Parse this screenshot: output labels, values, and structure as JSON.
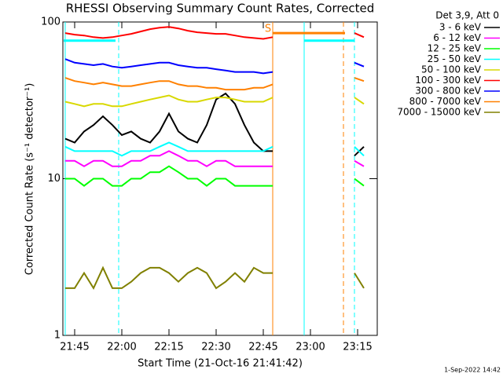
{
  "chart_data": {
    "type": "line",
    "title": "RHESSI Observing Summary Count Rates, Corrected",
    "x_label": "Start Time (21-Oct-16 21:41:42)",
    "y_label": "Corrected Count Rate (s⁻¹ detector⁻¹)",
    "legend_title": "Det 3,9, Att 0",
    "footnote": "1-Sep-2022 14:42",
    "log_y": true,
    "xlim": [
      1301.25,
      1401.25
    ],
    "xticks": [
      {
        "value": 1305,
        "label": "21:45"
      },
      {
        "value": 1320,
        "label": "22:00"
      },
      {
        "value": 1335,
        "label": "22:15"
      },
      {
        "value": 1350,
        "label": "22:30"
      },
      {
        "value": 1365,
        "label": "22:45"
      },
      {
        "value": 1380,
        "label": "23:00"
      },
      {
        "value": 1395,
        "label": "23:15"
      }
    ],
    "ylim": [
      1,
      100
    ],
    "yticks": [
      1,
      10,
      100
    ],
    "x": [
      1302,
      1305,
      1308,
      1311,
      1314,
      1317,
      1320,
      1323,
      1326,
      1329,
      1332,
      1335,
      1338,
      1341,
      1344,
      1347,
      1350,
      1353,
      1356,
      1359,
      1362,
      1365,
      1368,
      1380,
      1394,
      1397
    ],
    "series": [
      {
        "name": "3 - 6 keV",
        "color": "#000000",
        "values": [
          18,
          17,
          20,
          22,
          25,
          22,
          19,
          20,
          18,
          17,
          20,
          26,
          20,
          18,
          17,
          22,
          32,
          35,
          30,
          22,
          17,
          15,
          15,
          null,
          14,
          16
        ]
      },
      {
        "name": "6 - 12 keV",
        "color": "#ff00ff",
        "values": [
          13,
          13,
          12,
          13,
          13,
          12,
          12,
          13,
          13,
          14,
          14,
          15,
          14,
          13,
          13,
          12,
          13,
          13,
          12,
          12,
          12,
          12,
          12,
          null,
          13,
          12
        ]
      },
      {
        "name": "12 - 25 keV",
        "color": "#00ff00",
        "values": [
          10,
          10,
          9,
          10,
          10,
          9,
          9,
          10,
          10,
          11,
          11,
          12,
          11,
          10,
          10,
          9,
          10,
          10,
          9,
          9,
          9,
          9,
          9,
          null,
          10,
          9
        ]
      },
      {
        "name": "25 - 50 keV",
        "color": "#00ffff",
        "values": [
          16,
          15,
          15,
          15,
          15,
          15,
          14,
          15,
          15,
          15,
          16,
          17,
          16,
          15,
          15,
          15,
          15,
          15,
          15,
          15,
          15,
          15,
          16,
          null,
          16,
          14
        ]
      },
      {
        "name": "50 - 100 keV",
        "color": "#d8d800",
        "values": [
          31,
          30,
          29,
          30,
          30,
          29,
          29,
          30,
          31,
          32,
          33,
          34,
          32,
          31,
          31,
          32,
          33,
          33,
          32,
          31,
          31,
          31,
          33,
          null,
          33,
          30
        ]
      },
      {
        "name": "100 - 300 keV",
        "color": "#ff0000",
        "values": [
          85,
          83,
          82,
          80,
          79,
          80,
          82,
          84,
          87,
          90,
          92,
          93,
          91,
          88,
          86,
          85,
          84,
          84,
          82,
          80,
          79,
          78,
          80,
          null,
          85,
          80
        ]
      },
      {
        "name": "300 - 800 keV",
        "color": "#0000ff",
        "values": [
          58,
          55,
          54,
          53,
          54,
          52,
          51,
          52,
          53,
          54,
          55,
          55,
          53,
          52,
          51,
          51,
          50,
          49,
          48,
          48,
          48,
          47,
          48,
          null,
          55,
          52
        ]
      },
      {
        "name": "800 - 7000 keV",
        "color": "#ff8000",
        "values": [
          44,
          42,
          41,
          40,
          41,
          40,
          39,
          39,
          40,
          41,
          42,
          42,
          40,
          39,
          39,
          38,
          38,
          37,
          37,
          37,
          38,
          38,
          40,
          null,
          44,
          42
        ]
      },
      {
        "name": "7000 - 15000 keV",
        "color": "#808000",
        "values": [
          2,
          2,
          2.5,
          2,
          2.7,
          2,
          2,
          2.2,
          2.5,
          2.7,
          2.7,
          2.5,
          2.2,
          2.5,
          2.7,
          2.5,
          2,
          2.2,
          2.5,
          2.2,
          2.7,
          2.5,
          2.5,
          null,
          2.5,
          2
        ]
      }
    ],
    "vlines": [
      {
        "x": 1302,
        "color": "#00ffff",
        "dashed": false
      },
      {
        "x": 1319,
        "color": "#00ffff",
        "dashed": true
      },
      {
        "x": 1368,
        "color": "#ff8000",
        "dashed": false
      },
      {
        "x": 1378,
        "color": "#00ffff",
        "dashed": false
      },
      {
        "x": 1390.5,
        "color": "#ff8000",
        "dashed": true
      },
      {
        "x": 1394,
        "color": "#00ffff",
        "dashed": true
      }
    ],
    "segments": [
      {
        "x": [
          1301.5,
          1318
        ],
        "y": 76,
        "color": "#00ffff"
      },
      {
        "x": [
          1368,
          1391
        ],
        "y": 85,
        "color": "#ff8000"
      },
      {
        "x": [
          1378,
          1394
        ],
        "y": 76,
        "color": "#00ffff"
      }
    ],
    "annotations": [
      {
        "text": "S",
        "x": 1366.5,
        "y": 90,
        "color": "#ff8000"
      }
    ]
  }
}
